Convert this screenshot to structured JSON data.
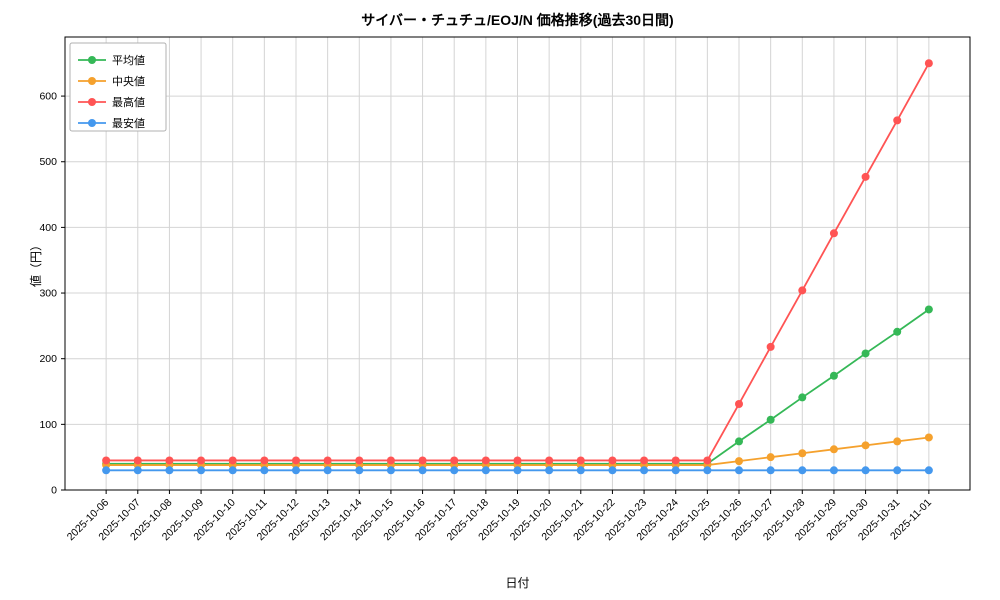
{
  "chart_data": {
    "type": "line",
    "title": "サイバー・チュチュ/EOJ/N 価格推移(過去30日間)",
    "xlabel": "日付",
    "ylabel": "値（円）",
    "ylim": [
      0,
      690
    ],
    "yticks": [
      0,
      100,
      200,
      300,
      400,
      500,
      600
    ],
    "grid": true,
    "legend_position": "upper-left",
    "categories": [
      "2025-10-06",
      "2025-10-07",
      "2025-10-08",
      "2025-10-09",
      "2025-10-10",
      "2025-10-11",
      "2025-10-12",
      "2025-10-13",
      "2025-10-14",
      "2025-10-15",
      "2025-10-16",
      "2025-10-17",
      "2025-10-18",
      "2025-10-19",
      "2025-10-20",
      "2025-10-21",
      "2025-10-22",
      "2025-10-23",
      "2025-10-24",
      "2025-10-25",
      "2025-10-26",
      "2025-10-27",
      "2025-10-28",
      "2025-10-29",
      "2025-10-30",
      "2025-10-31",
      "2025-11-01"
    ],
    "series": [
      {
        "name": "平均値",
        "color": "#35b857",
        "values": [
          40,
          40,
          40,
          40,
          40,
          40,
          40,
          40,
          40,
          40,
          40,
          40,
          40,
          40,
          40,
          40,
          40,
          40,
          40,
          40,
          74,
          107,
          141,
          174,
          208,
          241,
          275
        ]
      },
      {
        "name": "中央値",
        "color": "#f5a12d",
        "values": [
          38,
          38,
          38,
          38,
          38,
          38,
          38,
          38,
          38,
          38,
          38,
          38,
          38,
          38,
          38,
          38,
          38,
          38,
          38,
          38,
          44,
          50,
          56,
          62,
          68,
          74,
          80
        ]
      },
      {
        "name": "最高値",
        "color": "#ff5454",
        "values": [
          45,
          45,
          45,
          45,
          45,
          45,
          45,
          45,
          45,
          45,
          45,
          45,
          45,
          45,
          45,
          45,
          45,
          45,
          45,
          45,
          131,
          218,
          304,
          391,
          477,
          563,
          650
        ]
      },
      {
        "name": "最安値",
        "color": "#4498ee",
        "values": [
          30,
          30,
          30,
          30,
          30,
          30,
          30,
          30,
          30,
          30,
          30,
          30,
          30,
          30,
          30,
          30,
          30,
          30,
          30,
          30,
          30,
          30,
          30,
          30,
          30,
          30,
          30
        ]
      }
    ]
  },
  "style": {
    "grid_color": "#d4d4d4",
    "axis_color": "#000000",
    "legend_border_color": "#b0b0b0",
    "background": "#ffffff"
  }
}
